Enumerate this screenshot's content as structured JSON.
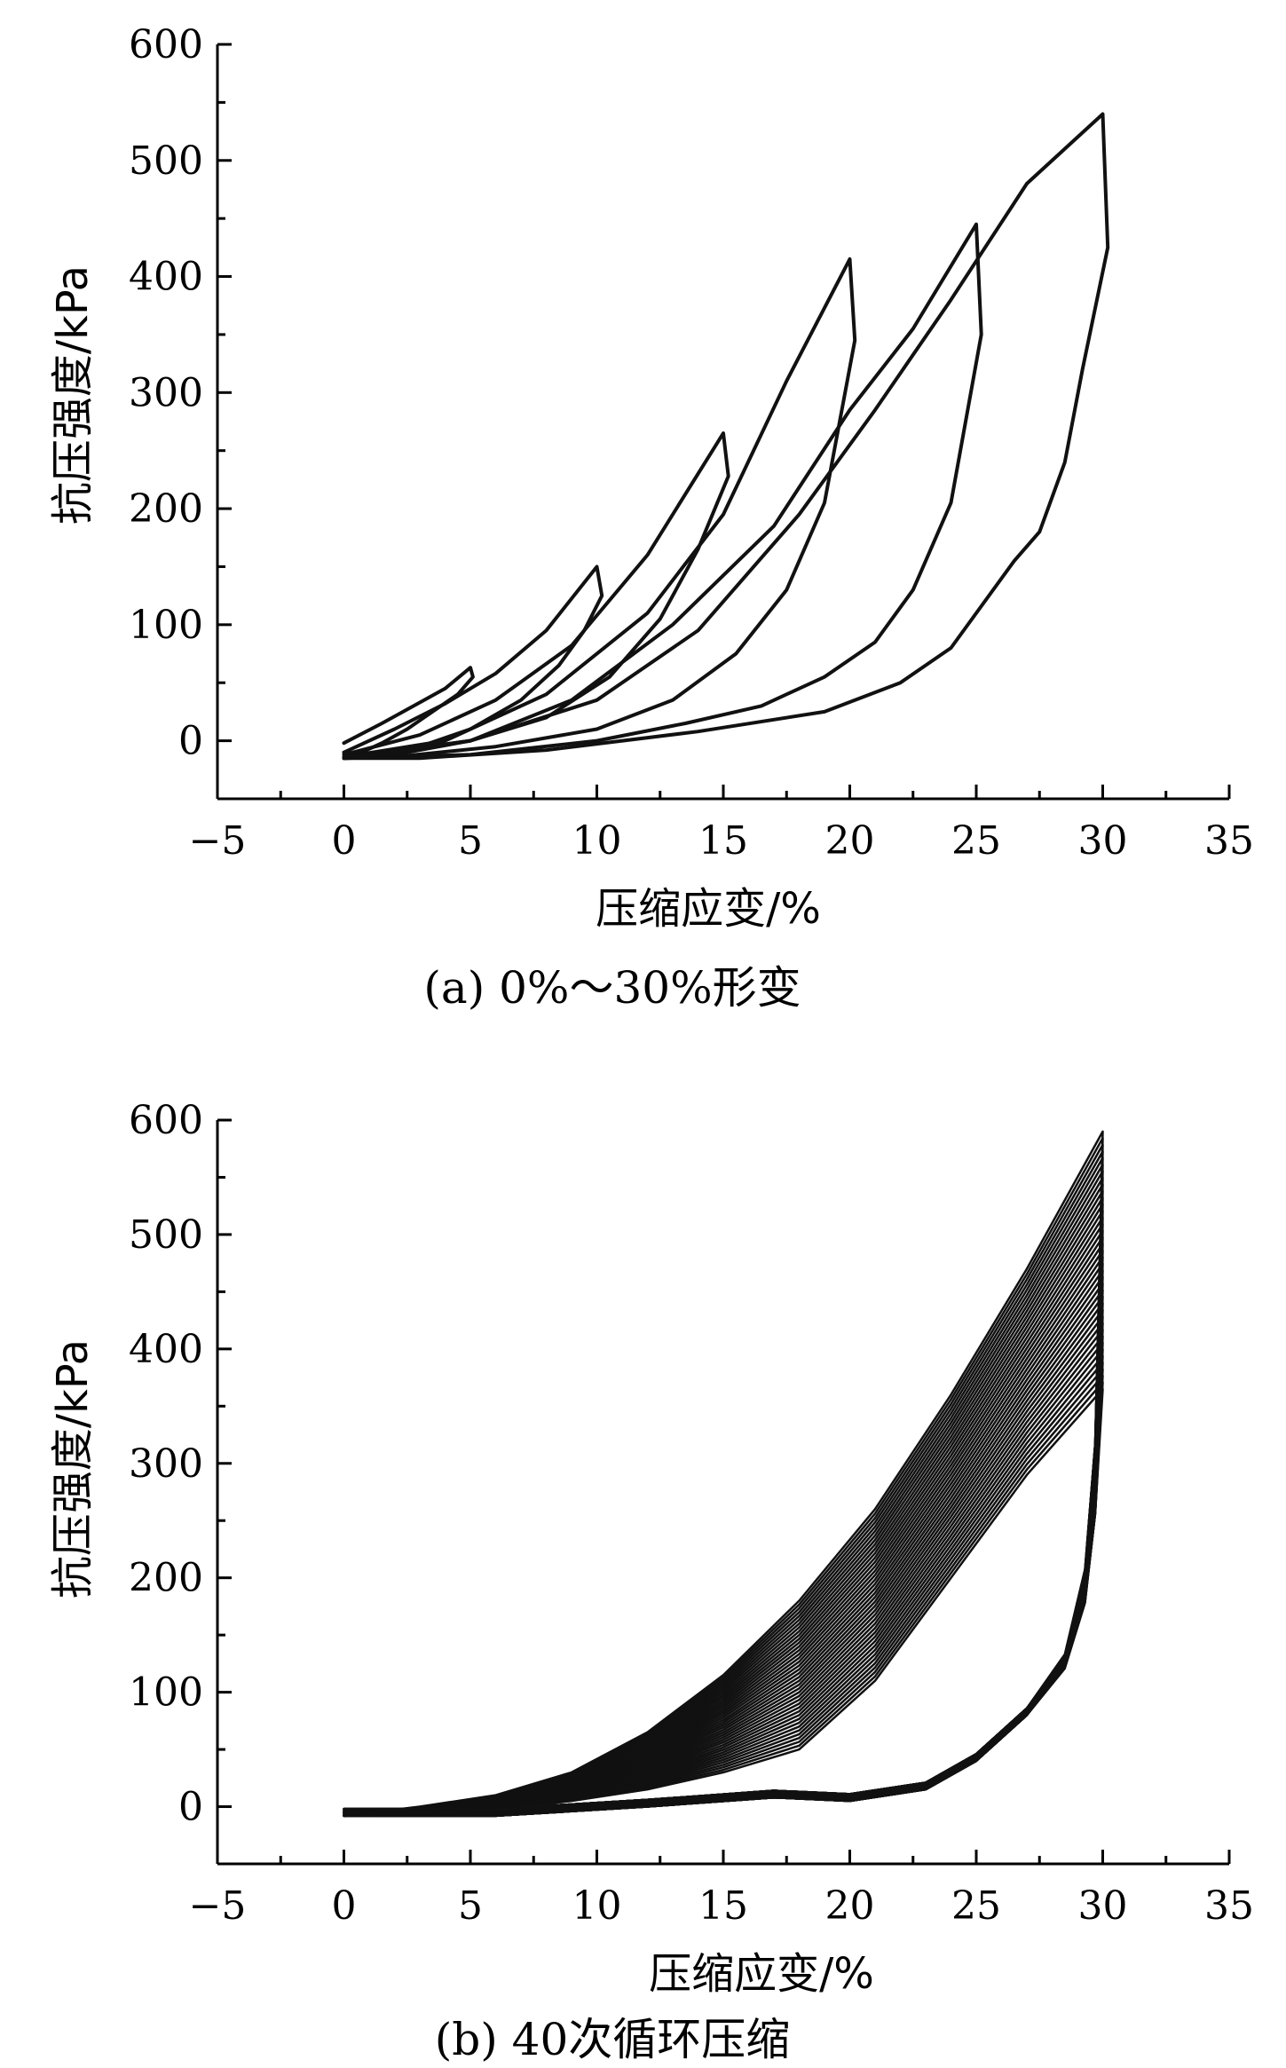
{
  "chart_data": [
    {
      "type": "line",
      "title": "",
      "caption": "(a) 0%～30%形变",
      "xlabel": "压缩应变/%",
      "ylabel": "抗压强度/kPa",
      "xlim": [
        -5,
        35
      ],
      "ylim": [
        -50,
        600
      ],
      "xticks": [
        -5,
        0,
        5,
        10,
        15,
        20,
        25,
        30,
        35
      ],
      "yticks": [
        0,
        100,
        200,
        300,
        400,
        500,
        600
      ],
      "xtick_labels": [
        "−5",
        "0",
        "5",
        "10",
        "15",
        "20",
        "25",
        "30",
        "35"
      ],
      "ytick_labels": [
        "0",
        "100",
        "200",
        "300",
        "400",
        "500",
        "600"
      ],
      "grid": false,
      "series": [
        {
          "x": [
            0,
            1.5,
            3,
            4,
            5,
            5.1,
            4.5,
            3.5,
            2.5,
            1.5,
            0.5,
            0
          ],
          "y": [
            -2,
            15,
            33,
            45,
            63,
            55,
            40,
            25,
            10,
            -2,
            -12,
            -15
          ]
        },
        {
          "x": [
            0,
            2,
            4,
            6,
            8,
            10,
            10.2,
            9.5,
            8.5,
            7,
            5,
            3,
            1,
            0
          ],
          "y": [
            -10,
            10,
            32,
            58,
            95,
            150,
            125,
            95,
            65,
            35,
            10,
            -5,
            -13,
            -15
          ]
        },
        {
          "x": [
            0,
            3,
            6,
            9,
            12,
            15,
            15.2,
            14,
            12.5,
            10.5,
            8,
            5,
            2,
            0
          ],
          "y": [
            -12,
            5,
            35,
            82,
            160,
            265,
            228,
            165,
            105,
            55,
            20,
            0,
            -12,
            -15
          ]
        },
        {
          "x": [
            0,
            4,
            8,
            12,
            15,
            17.5,
            20,
            20.2,
            19,
            17.5,
            15.5,
            13,
            10,
            6,
            2,
            0
          ],
          "y": [
            -14,
            0,
            40,
            110,
            195,
            310,
            415,
            345,
            205,
            130,
            75,
            35,
            10,
            -5,
            -14,
            -15
          ]
        },
        {
          "x": [
            0,
            5,
            9,
            13,
            17,
            20,
            22.5,
            25,
            25.2,
            24,
            22.5,
            21,
            19,
            16.5,
            13.5,
            10,
            5,
            0
          ],
          "y": [
            -15,
            0,
            35,
            100,
            185,
            285,
            355,
            445,
            350,
            205,
            130,
            85,
            55,
            30,
            15,
            0,
            -12,
            -15
          ]
        },
        {
          "x": [
            0,
            5,
            10,
            14,
            18,
            21,
            24,
            27,
            30,
            30.2,
            29.2,
            28.5,
            27.5,
            26.5,
            24,
            22,
            19,
            14,
            8,
            3,
            0
          ],
          "y": [
            -15,
            0,
            35,
            95,
            195,
            285,
            380,
            480,
            540,
            425,
            320,
            240,
            180,
            155,
            80,
            50,
            25,
            8,
            -8,
            -15,
            -15
          ]
        }
      ]
    },
    {
      "type": "line",
      "title": "",
      "caption": "(b) 40次循环压缩",
      "xlabel": "压缩应变/%",
      "ylabel": "抗压强度/kPa",
      "xlim": [
        -5,
        35
      ],
      "ylim": [
        -50,
        600
      ],
      "xticks": [
        -5,
        0,
        5,
        10,
        15,
        20,
        25,
        30,
        35
      ],
      "yticks": [
        0,
        100,
        200,
        300,
        400,
        500,
        600
      ],
      "xtick_labels": [
        "−5",
        "0",
        "5",
        "10",
        "15",
        "20",
        "25",
        "30",
        "35"
      ],
      "ytick_labels": [
        "0",
        "100",
        "200",
        "300",
        "400",
        "500",
        "600"
      ],
      "grid": false,
      "cycles": {
        "count": 40,
        "peak_max": 590,
        "peak_min": 365,
        "loading_x": [
          0,
          3,
          6,
          9,
          12,
          15,
          18,
          21,
          24,
          27,
          30
        ],
        "loading_y_first": [
          -8,
          0,
          10,
          30,
          65,
          115,
          180,
          260,
          360,
          470,
          590
        ],
        "loading_y_last": [
          -8,
          -6,
          -3,
          5,
          15,
          30,
          50,
          110,
          200,
          290,
          365
        ],
        "unloading_x": [
          30,
          29.7,
          29.3,
          28.5,
          27,
          25,
          23,
          20,
          17,
          12,
          6,
          0
        ],
        "unloading_y": [
          365,
          250,
          175,
          120,
          80,
          40,
          15,
          5,
          8,
          0,
          -8,
          -8
        ]
      }
    }
  ]
}
